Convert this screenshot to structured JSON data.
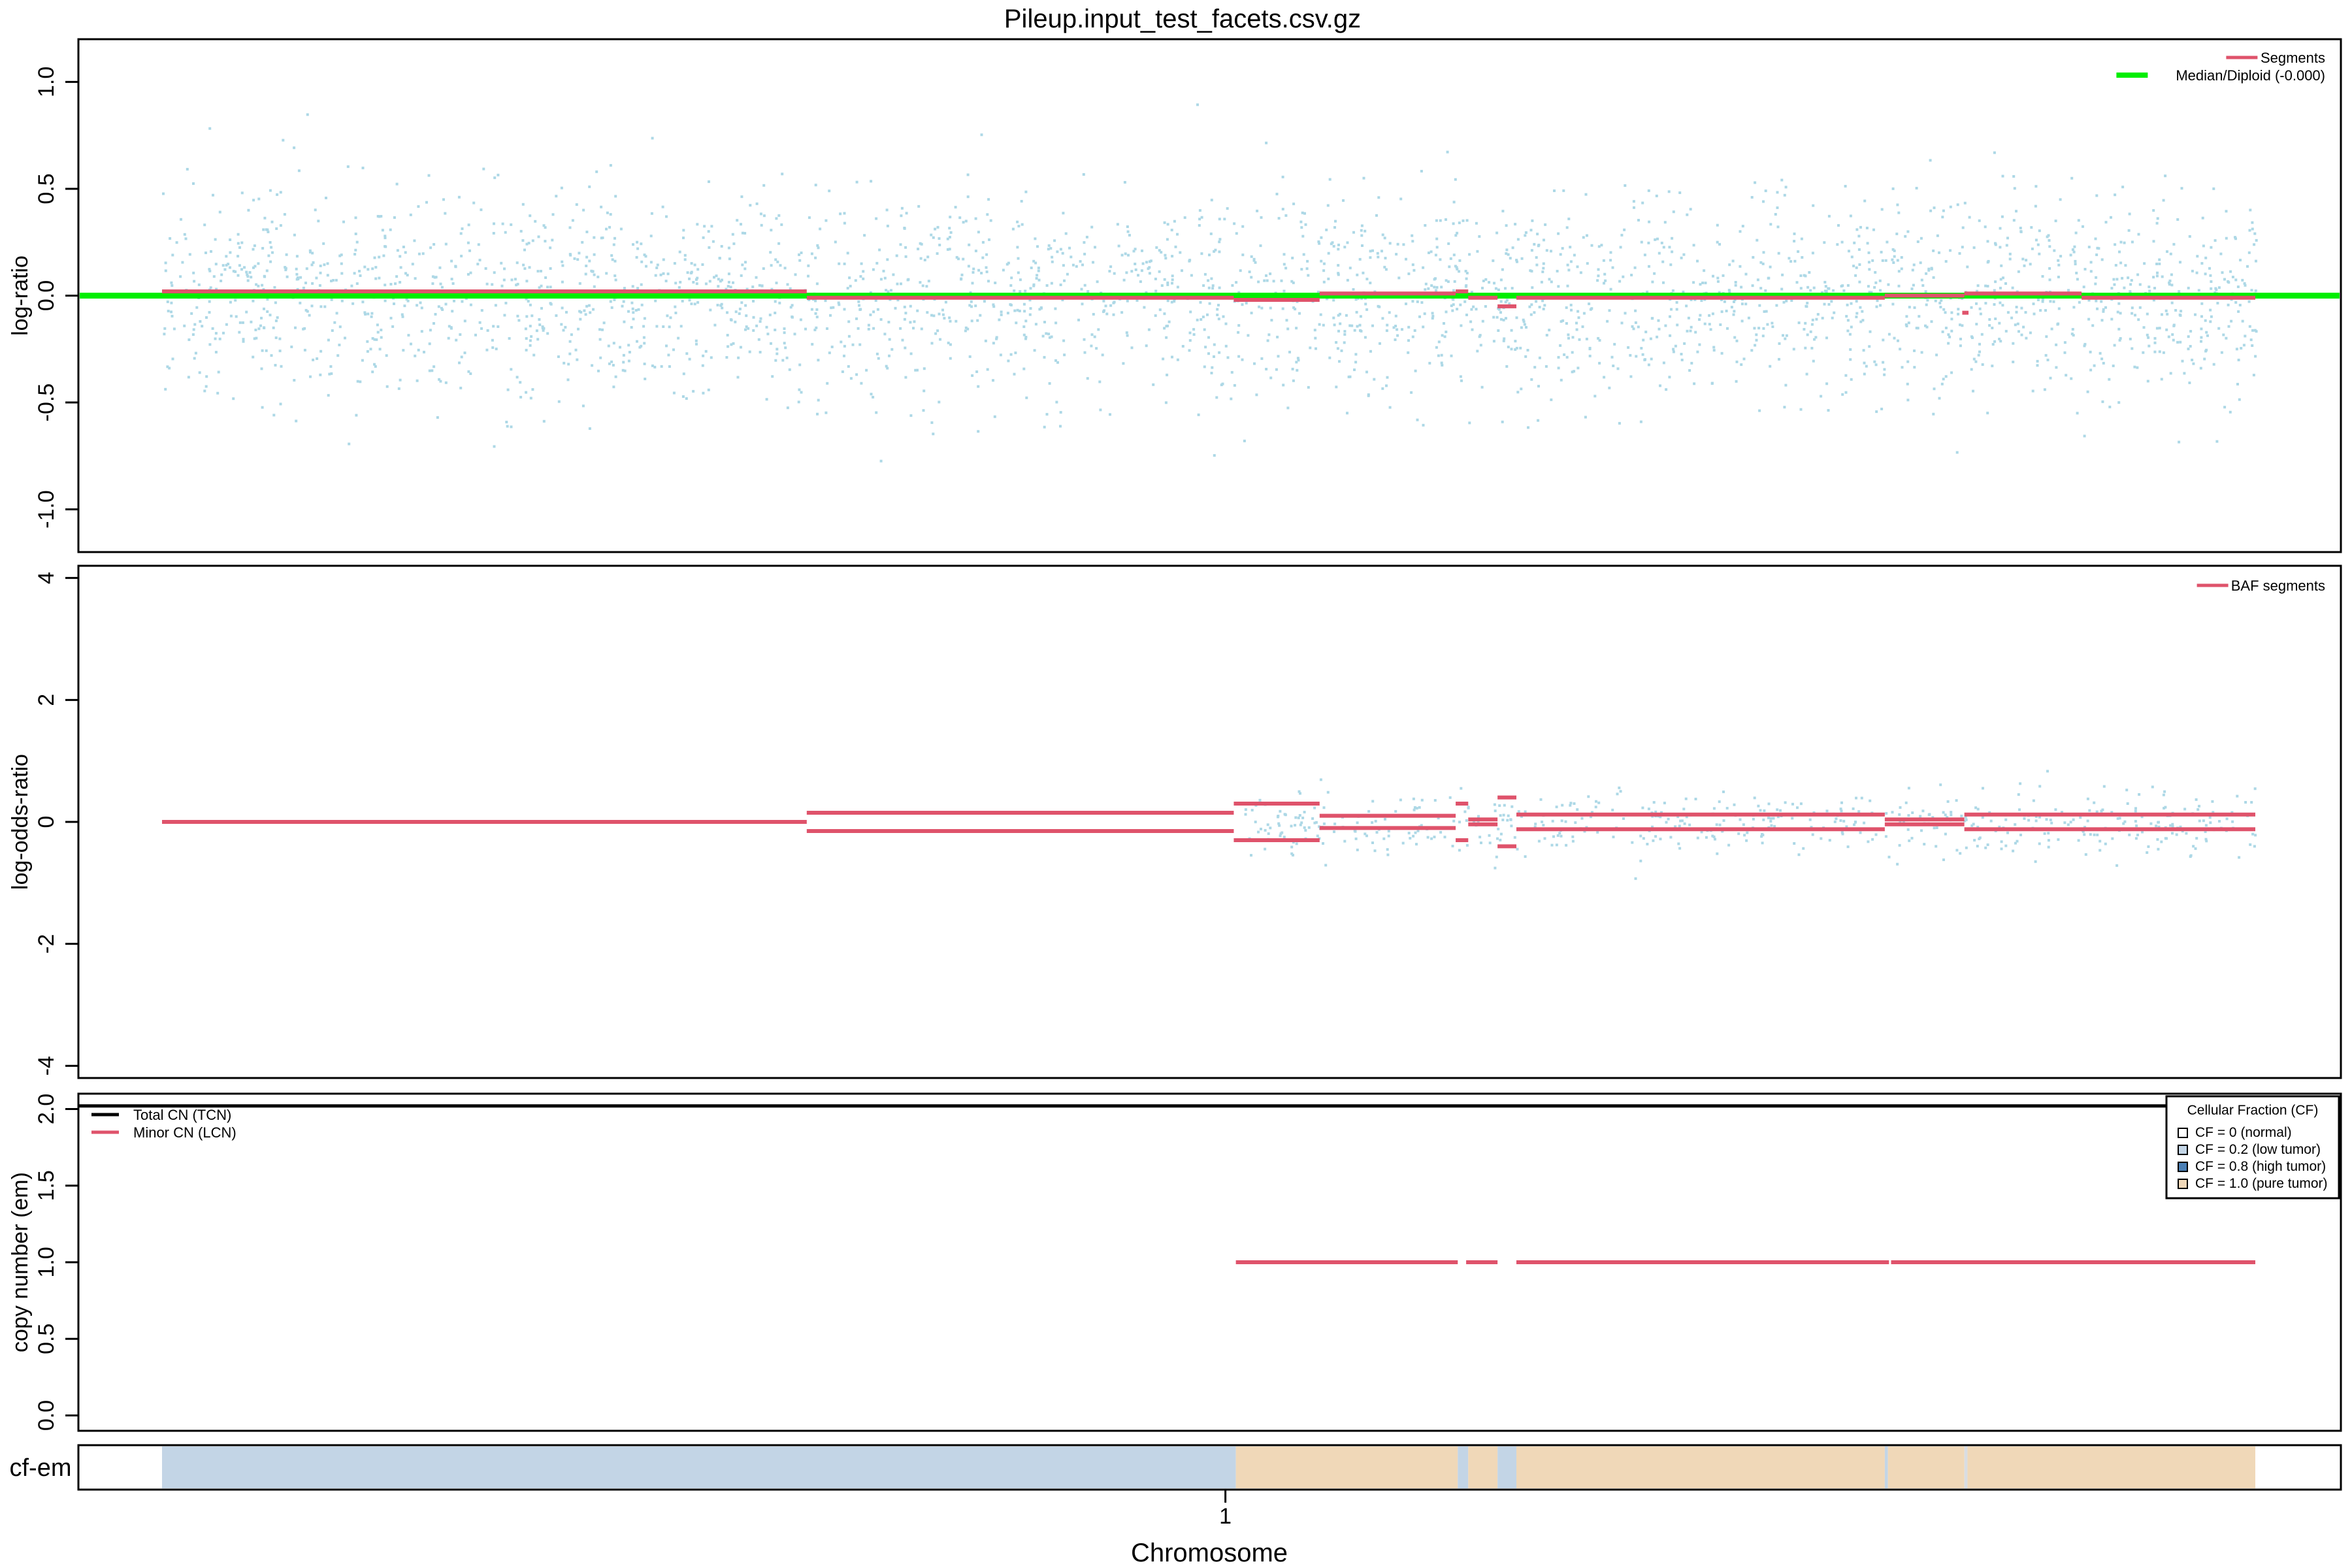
{
  "title": "Pileup.input_test_facets.csv.gz",
  "colors": {
    "points": "#add8e6",
    "segment": "#df536b",
    "median": "#00ee00",
    "tcn": "#000000",
    "cf_low": "#c3d5e6",
    "cf_pure": "#f0d8b8"
  },
  "chart_data": [
    {
      "type": "scatter",
      "panel": "log-ratio",
      "ylabel": "log-ratio",
      "ylim": [
        -1.2,
        1.2
      ],
      "yticks": [
        "-1.0",
        "-0.5",
        "0.0",
        "0.5",
        "1.0"
      ],
      "xlim": [
        0,
        100
      ],
      "grid": false,
      "legend_position": "top-right",
      "legend": [
        {
          "label": "Segments",
          "color": "#df536b"
        },
        {
          "label": "Median/Diploid (-0.000)",
          "color": "#00ee00"
        }
      ],
      "median": 0.0,
      "points": {
        "x_range": [
          0,
          100
        ],
        "center": 0.0,
        "spread": 0.24,
        "count": 3000,
        "seed": 11
      },
      "segments": [
        {
          "x0": 0.0,
          "x1": 30.8,
          "y": 0.02
        },
        {
          "x0": 30.8,
          "x1": 51.2,
          "y": -0.01
        },
        {
          "x0": 51.2,
          "x1": 55.3,
          "y": -0.02
        },
        {
          "x0": 55.3,
          "x1": 61.8,
          "y": 0.01
        },
        {
          "x0": 61.8,
          "x1": 62.4,
          "y": 0.02
        },
        {
          "x0": 62.4,
          "x1": 63.8,
          "y": -0.01
        },
        {
          "x0": 63.8,
          "x1": 64.7,
          "y": -0.05
        },
        {
          "x0": 64.7,
          "x1": 82.3,
          "y": -0.01
        },
        {
          "x0": 82.3,
          "x1": 86.1,
          "y": 0.0
        },
        {
          "x0": 86.0,
          "x1": 86.3,
          "y": -0.08
        },
        {
          "x0": 86.1,
          "x1": 91.7,
          "y": 0.01
        },
        {
          "x0": 91.7,
          "x1": 100,
          "y": -0.01
        }
      ]
    },
    {
      "type": "scatter",
      "panel": "log-odds-ratio",
      "ylabel": "log-odds-ratio",
      "ylim": [
        -4.2,
        4.2
      ],
      "yticks": [
        "-4",
        "-2",
        "0",
        "2",
        "4"
      ],
      "xlim": [
        0,
        100
      ],
      "grid": false,
      "legend_position": "top-right",
      "legend": [
        {
          "label": "BAF segments",
          "color": "#df536b"
        }
      ],
      "points": {
        "x_range": [
          51.5,
          100
        ],
        "center": 0.0,
        "spread": 0.25,
        "count": 600,
        "seed": 23
      },
      "segments": [
        {
          "x0": 0.0,
          "x1": 30.8,
          "y": 0.0
        },
        {
          "x0": 30.8,
          "x1": 51.2,
          "y": 0.15
        },
        {
          "x0": 30.8,
          "x1": 51.2,
          "y": -0.15
        },
        {
          "x0": 51.2,
          "x1": 55.3,
          "y": 0.3
        },
        {
          "x0": 51.2,
          "x1": 55.3,
          "y": -0.3
        },
        {
          "x0": 55.3,
          "x1": 61.8,
          "y": 0.1
        },
        {
          "x0": 55.3,
          "x1": 61.8,
          "y": -0.1
        },
        {
          "x0": 61.8,
          "x1": 62.4,
          "y": 0.3
        },
        {
          "x0": 61.8,
          "x1": 62.4,
          "y": -0.3
        },
        {
          "x0": 62.4,
          "x1": 63.8,
          "y": 0.04
        },
        {
          "x0": 62.4,
          "x1": 63.8,
          "y": -0.04
        },
        {
          "x0": 63.8,
          "x1": 64.7,
          "y": 0.4
        },
        {
          "x0": 63.8,
          "x1": 64.7,
          "y": -0.4
        },
        {
          "x0": 64.7,
          "x1": 82.3,
          "y": 0.12
        },
        {
          "x0": 64.7,
          "x1": 82.3,
          "y": -0.12
        },
        {
          "x0": 82.3,
          "x1": 86.1,
          "y": 0.04
        },
        {
          "x0": 82.3,
          "x1": 86.1,
          "y": -0.04
        },
        {
          "x0": 86.1,
          "x1": 100,
          "y": 0.12
        },
        {
          "x0": 86.1,
          "x1": 100,
          "y": -0.12
        }
      ]
    },
    {
      "type": "line",
      "panel": "copy number (em)",
      "ylabel": "copy number (em)",
      "ylim": [
        -0.1,
        2.1
      ],
      "yticks": [
        "0.0",
        "0.5",
        "1.0",
        "1.5",
        "2.0"
      ],
      "xlim": [
        0,
        100
      ],
      "grid": false,
      "legend_position": "top-left",
      "legend": [
        {
          "label": "Total CN (TCN)",
          "color": "#000000"
        },
        {
          "label": "Minor CN (LCN)",
          "color": "#df536b"
        }
      ],
      "tcn_segments": [
        {
          "x0": -4.0,
          "x1": 104.0,
          "y": 2.02
        }
      ],
      "lcn_segments": [
        {
          "x0": 51.3,
          "x1": 61.9,
          "y": 1.0
        },
        {
          "x0": 62.3,
          "x1": 63.8,
          "y": 1.0
        },
        {
          "x0": 64.7,
          "x1": 82.5,
          "y": 1.0
        },
        {
          "x0": 82.6,
          "x1": 100,
          "y": 1.0
        }
      ],
      "cf_legend": {
        "title": "Cellular Fraction (CF)",
        "position": "top-right",
        "entries": [
          {
            "label": "CF = 0 (normal)",
            "color": "#ffffff"
          },
          {
            "label": "CF = 0.2 (low tumor)",
            "color": "#c3d5e6"
          },
          {
            "label": "CF = 0.8 (high tumor)",
            "color": "#4a7fb5"
          },
          {
            "label": "CF = 1.0 (pure tumor)",
            "color": "#f0d8b8"
          }
        ]
      }
    },
    {
      "type": "heatmap",
      "panel": "cf-em",
      "ylabel": "cf-em",
      "xlabel": "Chromosome",
      "xticks": [
        {
          "x": 50.8,
          "label": "1"
        }
      ],
      "blocks": [
        {
          "x0": 0.0,
          "x1": 51.3,
          "color": "#c3d5e6"
        },
        {
          "x0": 51.3,
          "x1": 61.9,
          "color": "#f0d8b8"
        },
        {
          "x0": 61.9,
          "x1": 62.4,
          "color": "#c3d5e6"
        },
        {
          "x0": 62.4,
          "x1": 63.8,
          "color": "#f0d8b8"
        },
        {
          "x0": 63.8,
          "x1": 64.7,
          "color": "#c3d5e6"
        },
        {
          "x0": 64.7,
          "x1": 82.3,
          "color": "#f0d8b8"
        },
        {
          "x0": 82.3,
          "x1": 82.45,
          "color": "#c3d5e6"
        },
        {
          "x0": 82.45,
          "x1": 86.1,
          "color": "#f0d8b8"
        },
        {
          "x0": 86.1,
          "x1": 86.25,
          "color": "#d9dde3"
        },
        {
          "x0": 86.25,
          "x1": 100,
          "color": "#f0d8b8"
        }
      ]
    }
  ]
}
